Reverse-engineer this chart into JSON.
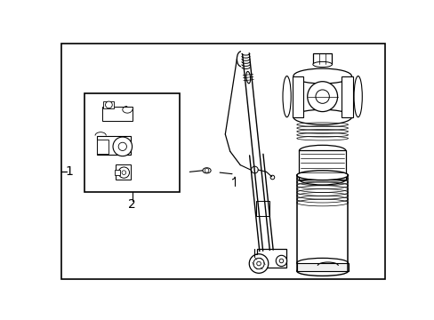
{
  "background_color": "#ffffff",
  "line_color": "#000000",
  "label_1": "1",
  "label_2": "2",
  "fig_width": 4.89,
  "fig_height": 3.6,
  "dpi": 100
}
